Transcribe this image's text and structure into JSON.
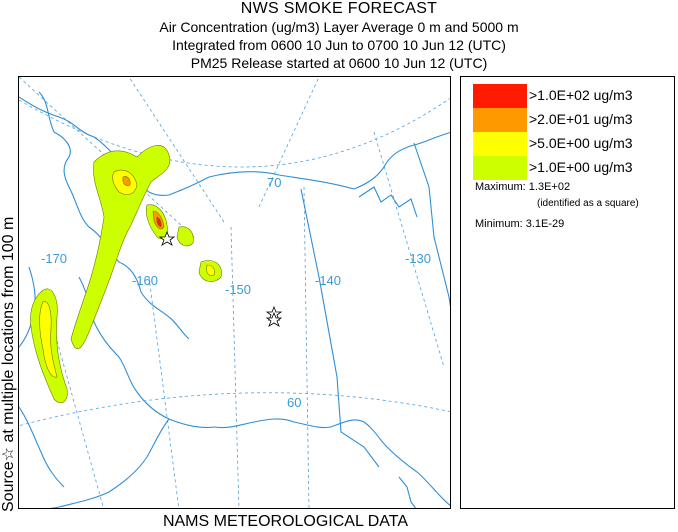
{
  "header": {
    "title": "NWS SMOKE FORECAST",
    "line1": "Air Concentration (ug/m3) Layer Average    0 m and  5000 m",
    "line2": "Integrated from 0600 10 Jun to 0700 10 Jun 12 (UTC)",
    "line3": "PM25 Release started at 0600 10 Jun 12 (UTC)"
  },
  "side_label": "Source☆ at multiple locations  from  100 m",
  "bottom_label": "NAMS METEOROLOGICAL DATA",
  "map": {
    "longitude_labels": [
      "-170",
      "-160",
      "-150",
      "-140",
      "-130"
    ],
    "latitude_labels": [
      "70",
      "60"
    ],
    "colors": {
      "coast": "#2f8fd6",
      "graticule": "#4aa3dc"
    }
  },
  "legend": {
    "items": [
      {
        "label": ">1.0E+02 ug/m3",
        "color": "#ff1a00"
      },
      {
        "label": ">2.0E+01 ug/m3",
        "color": "#ff9900"
      },
      {
        "label": ">5.0E+00 ug/m3",
        "color": "#ffff00"
      },
      {
        "label": ">1.0E+00 ug/m3",
        "color": "#ccff00"
      }
    ],
    "maximum": "Maximum: 1.3E+02",
    "max_note": "(identified as a square)",
    "minimum": "Minimum: 3.1E-29"
  }
}
